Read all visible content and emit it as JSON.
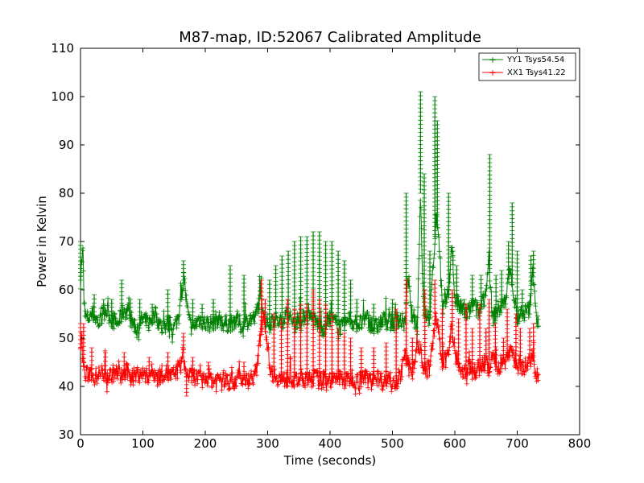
{
  "chart_data": {
    "type": "line",
    "title": "M87-map, ID:52067 Calibrated Amplitude",
    "xlabel": "Time (seconds)",
    "ylabel": "Power in Kelvin",
    "xlim": [
      0,
      800
    ],
    "ylim": [
      30,
      110
    ],
    "xticks": [
      "0",
      "100",
      "200",
      "300",
      "400",
      "500",
      "600",
      "700",
      "800"
    ],
    "yticks": [
      "30",
      "40",
      "50",
      "60",
      "70",
      "80",
      "90",
      "100",
      "110"
    ],
    "legend_position": "top-right",
    "grid": false,
    "series": [
      {
        "name": "YY1 Tsys54.54",
        "color": "#008000",
        "marker": "+",
        "points": [
          [
            0,
            62
          ],
          [
            2,
            66
          ],
          [
            4,
            68
          ],
          [
            6,
            55
          ],
          [
            10,
            54
          ],
          [
            20,
            55
          ],
          [
            30,
            53
          ],
          [
            40,
            56
          ],
          [
            50,
            54
          ],
          [
            60,
            53
          ],
          [
            70,
            56
          ],
          [
            80,
            54
          ],
          [
            90,
            52
          ],
          [
            100,
            54
          ],
          [
            110,
            53
          ],
          [
            120,
            55
          ],
          [
            130,
            52
          ],
          [
            140,
            53
          ],
          [
            150,
            52
          ],
          [
            158,
            55
          ],
          [
            163,
            60
          ],
          [
            166,
            63
          ],
          [
            170,
            57
          ],
          [
            175,
            53
          ],
          [
            180,
            52
          ],
          [
            190,
            54
          ],
          [
            200,
            53
          ],
          [
            210,
            53
          ],
          [
            220,
            54
          ],
          [
            230,
            53
          ],
          [
            240,
            53
          ],
          [
            250,
            54
          ],
          [
            260,
            52
          ],
          [
            270,
            54
          ],
          [
            280,
            54
          ],
          [
            285,
            57
          ],
          [
            290,
            59
          ],
          [
            295,
            54
          ],
          [
            300,
            53
          ],
          [
            310,
            54
          ],
          [
            320,
            53
          ],
          [
            330,
            55
          ],
          [
            340,
            53
          ],
          [
            350,
            54
          ],
          [
            355,
            53
          ],
          [
            360,
            55
          ],
          [
            370,
            54
          ],
          [
            380,
            53
          ],
          [
            390,
            52
          ],
          [
            400,
            54
          ],
          [
            410,
            53
          ],
          [
            420,
            52
          ],
          [
            430,
            54
          ],
          [
            440,
            53
          ],
          [
            450,
            53
          ],
          [
            460,
            54
          ],
          [
            470,
            52
          ],
          [
            480,
            53
          ],
          [
            490,
            54
          ],
          [
            500,
            53
          ],
          [
            510,
            54
          ],
          [
            520,
            53
          ],
          [
            525,
            63
          ],
          [
            530,
            55
          ],
          [
            540,
            53
          ],
          [
            545,
            80
          ],
          [
            547,
            69
          ],
          [
            550,
            56
          ],
          [
            560,
            54
          ],
          [
            565,
            64
          ],
          [
            570,
            75
          ],
          [
            574,
            72
          ],
          [
            580,
            56
          ],
          [
            590,
            59
          ],
          [
            595,
            70
          ],
          [
            600,
            58
          ],
          [
            610,
            56
          ],
          [
            620,
            55
          ],
          [
            630,
            57
          ],
          [
            640,
            55
          ],
          [
            650,
            60
          ],
          [
            655,
            66
          ],
          [
            660,
            54
          ],
          [
            670,
            56
          ],
          [
            680,
            57
          ],
          [
            685,
            62
          ],
          [
            690,
            64
          ],
          [
            695,
            58
          ],
          [
            700,
            54
          ],
          [
            710,
            55
          ],
          [
            720,
            56
          ],
          [
            725,
            64
          ],
          [
            728,
            60
          ],
          [
            732,
            53
          ],
          [
            735,
            53
          ]
        ],
        "spikes": [
          [
            0,
            70
          ],
          [
            22,
            59
          ],
          [
            37,
            58
          ],
          [
            50,
            58
          ],
          [
            66,
            62
          ],
          [
            80,
            58
          ],
          [
            95,
            58
          ],
          [
            115,
            57
          ],
          [
            140,
            60
          ],
          [
            165,
            66
          ],
          [
            180,
            58
          ],
          [
            195,
            57
          ],
          [
            213,
            58
          ],
          [
            240,
            65
          ],
          [
            262,
            63
          ],
          [
            288,
            62
          ],
          [
            303,
            62
          ],
          [
            313,
            65
          ],
          [
            323,
            67
          ],
          [
            333,
            68
          ],
          [
            343,
            70
          ],
          [
            353,
            71
          ],
          [
            363,
            71
          ],
          [
            373,
            72
          ],
          [
            383,
            72
          ],
          [
            393,
            70
          ],
          [
            403,
            70
          ],
          [
            413,
            68
          ],
          [
            423,
            66
          ],
          [
            433,
            62
          ],
          [
            443,
            58
          ],
          [
            470,
            57
          ],
          [
            500,
            58
          ],
          [
            522,
            80
          ],
          [
            545,
            101
          ],
          [
            551,
            84
          ],
          [
            560,
            68
          ],
          [
            568,
            100
          ],
          [
            572,
            95
          ],
          [
            590,
            80
          ],
          [
            597,
            68
          ],
          [
            603,
            65
          ],
          [
            615,
            58
          ],
          [
            628,
            63
          ],
          [
            642,
            63
          ],
          [
            656,
            88
          ],
          [
            666,
            63
          ],
          [
            675,
            64
          ],
          [
            686,
            70
          ],
          [
            692,
            78
          ],
          [
            700,
            68
          ],
          [
            708,
            60
          ],
          [
            722,
            67
          ],
          [
            726,
            68
          ]
        ]
      },
      {
        "name": "XX1 Tsys41.22",
        "color": "#ff0000",
        "marker": "+",
        "points": [
          [
            0,
            48
          ],
          [
            2,
            50
          ],
          [
            4,
            45
          ],
          [
            8,
            42
          ],
          [
            15,
            43
          ],
          [
            25,
            42
          ],
          [
            35,
            43
          ],
          [
            45,
            42
          ],
          [
            55,
            43
          ],
          [
            65,
            42
          ],
          [
            75,
            43
          ],
          [
            85,
            42
          ],
          [
            95,
            43
          ],
          [
            105,
            42
          ],
          [
            115,
            43
          ],
          [
            125,
            42
          ],
          [
            135,
            43
          ],
          [
            145,
            42
          ],
          [
            155,
            43
          ],
          [
            160,
            44
          ],
          [
            165,
            47
          ],
          [
            168,
            43
          ],
          [
            175,
            42
          ],
          [
            185,
            42
          ],
          [
            195,
            41
          ],
          [
            205,
            42
          ],
          [
            215,
            41
          ],
          [
            225,
            42
          ],
          [
            235,
            41
          ],
          [
            245,
            41
          ],
          [
            255,
            42
          ],
          [
            265,
            41
          ],
          [
            275,
            42
          ],
          [
            282,
            43
          ],
          [
            288,
            50
          ],
          [
            293,
            55
          ],
          [
            297,
            52
          ],
          [
            300,
            48
          ],
          [
            305,
            43
          ],
          [
            315,
            42
          ],
          [
            325,
            41
          ],
          [
            335,
            42
          ],
          [
            345,
            41
          ],
          [
            355,
            42
          ],
          [
            365,
            41
          ],
          [
            375,
            42
          ],
          [
            385,
            41
          ],
          [
            395,
            42
          ],
          [
            405,
            41
          ],
          [
            415,
            42
          ],
          [
            425,
            41
          ],
          [
            435,
            42
          ],
          [
            445,
            41
          ],
          [
            455,
            42
          ],
          [
            465,
            41
          ],
          [
            475,
            42
          ],
          [
            485,
            41
          ],
          [
            495,
            42
          ],
          [
            505,
            41
          ],
          [
            515,
            43
          ],
          [
            520,
            46
          ],
          [
            526,
            44
          ],
          [
            532,
            43
          ],
          [
            540,
            49
          ],
          [
            546,
            47
          ],
          [
            550,
            43
          ],
          [
            560,
            44
          ],
          [
            570,
            55
          ],
          [
            575,
            50
          ],
          [
            580,
            44
          ],
          [
            590,
            47
          ],
          [
            595,
            52
          ],
          [
            600,
            47
          ],
          [
            610,
            42
          ],
          [
            620,
            44
          ],
          [
            630,
            43
          ],
          [
            640,
            44
          ],
          [
            650,
            45
          ],
          [
            655,
            43
          ],
          [
            660,
            46
          ],
          [
            670,
            44
          ],
          [
            680,
            45
          ],
          [
            690,
            48
          ],
          [
            695,
            46
          ],
          [
            700,
            44
          ],
          [
            710,
            44
          ],
          [
            720,
            45
          ],
          [
            725,
            46
          ],
          [
            730,
            42
          ],
          [
            735,
            42
          ]
        ],
        "spikes": [
          [
            0,
            53
          ],
          [
            5,
            53
          ],
          [
            18,
            48
          ],
          [
            40,
            47
          ],
          [
            70,
            47
          ],
          [
            110,
            46
          ],
          [
            140,
            47
          ],
          [
            165,
            51
          ],
          [
            170,
            38
          ],
          [
            180,
            46
          ],
          [
            205,
            45
          ],
          [
            262,
            45
          ],
          [
            290,
            62
          ],
          [
            296,
            58
          ],
          [
            310,
            55
          ],
          [
            322,
            54
          ],
          [
            332,
            58
          ],
          [
            343,
            56
          ],
          [
            353,
            57
          ],
          [
            363,
            57
          ],
          [
            373,
            60
          ],
          [
            383,
            58
          ],
          [
            393,
            57
          ],
          [
            403,
            55
          ],
          [
            413,
            52
          ],
          [
            423,
            51
          ],
          [
            433,
            50
          ],
          [
            450,
            48
          ],
          [
            470,
            48
          ],
          [
            490,
            49
          ],
          [
            506,
            56
          ],
          [
            522,
            62
          ],
          [
            532,
            50
          ],
          [
            552,
            60
          ],
          [
            568,
            62
          ],
          [
            580,
            56
          ],
          [
            596,
            60
          ],
          [
            606,
            54
          ],
          [
            618,
            57
          ],
          [
            628,
            52
          ],
          [
            640,
            57
          ],
          [
            650,
            52
          ],
          [
            655,
            58
          ],
          [
            665,
            53
          ],
          [
            678,
            50
          ],
          [
            684,
            56
          ],
          [
            698,
            55
          ],
          [
            705,
            52
          ],
          [
            720,
            52
          ],
          [
            726,
            53
          ]
        ]
      }
    ]
  }
}
